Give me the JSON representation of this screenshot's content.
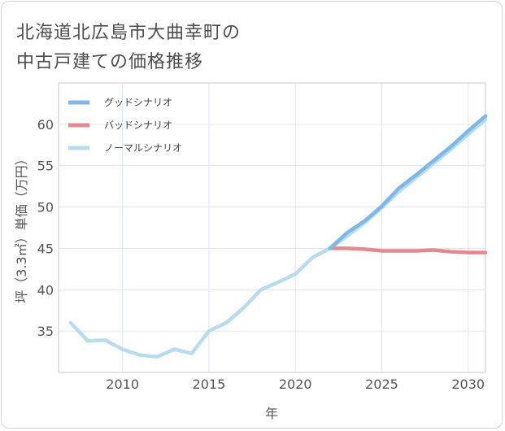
{
  "title": {
    "line1": "北海道北広島市大曲幸町の",
    "line2": "中古戸建ての価格推移"
  },
  "chart_data": {
    "type": "line",
    "xlabel": "年",
    "ylabel": "坪（3.3㎡）単価（万円）",
    "xlim": [
      2006.3,
      2031
    ],
    "ylim": [
      30,
      65
    ],
    "x_ticks": [
      2010,
      2015,
      2020,
      2025,
      2030
    ],
    "y_ticks": [
      35,
      40,
      45,
      50,
      55,
      60
    ],
    "x_tick_labels": [
      "2010",
      "2015",
      "2020",
      "2025",
      "2030"
    ],
    "y_tick_labels": [
      "35",
      "40",
      "45",
      "50",
      "55",
      "60"
    ],
    "grid": true,
    "legend_position": "top-left",
    "series": [
      {
        "name": "グッドシナリオ",
        "color": "#7cb9e8",
        "x": [
          2022,
          2023,
          2024,
          2025,
          2026,
          2027,
          2028,
          2029,
          2030,
          2031
        ],
        "values": [
          45.0,
          46.9,
          48.3,
          50.1,
          52.3,
          53.9,
          55.6,
          57.3,
          59.2,
          61.0
        ]
      },
      {
        "name": "バッドシナリオ",
        "color": "#e28a91",
        "x": [
          2022,
          2023,
          2024,
          2025,
          2026,
          2027,
          2028,
          2029,
          2030,
          2031
        ],
        "values": [
          45.0,
          45.0,
          44.9,
          44.7,
          44.7,
          44.7,
          44.8,
          44.6,
          44.5,
          44.5
        ]
      },
      {
        "name": "ノーマルシナリオ",
        "color": "#b8dcee",
        "x": [
          2007,
          2008,
          2009,
          2010,
          2011,
          2012,
          2013,
          2014,
          2015,
          2016,
          2017,
          2018,
          2019,
          2020,
          2021,
          2022,
          2023,
          2024,
          2025,
          2026,
          2027,
          2028,
          2029,
          2030,
          2031
        ],
        "values": [
          36.0,
          33.8,
          33.9,
          32.8,
          32.1,
          31.9,
          32.8,
          32.3,
          35.0,
          36.0,
          37.8,
          40.0,
          40.9,
          41.9,
          43.9,
          45.0,
          46.5,
          48.1,
          49.9,
          51.9,
          53.6,
          55.3,
          57.0,
          58.8,
          60.6
        ]
      }
    ]
  }
}
